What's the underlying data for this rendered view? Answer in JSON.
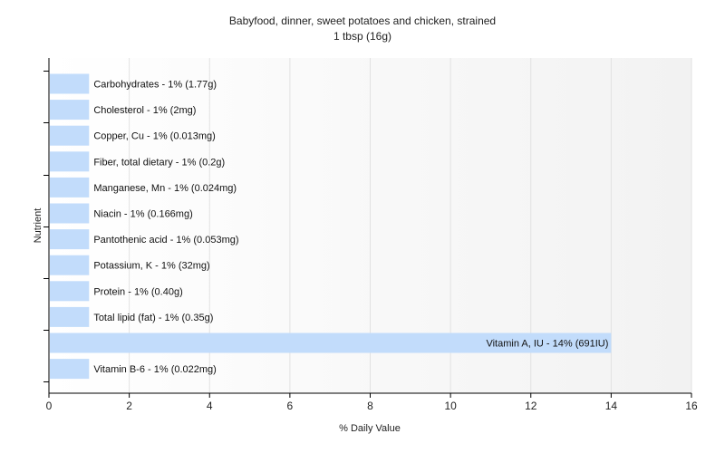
{
  "chart_data": {
    "type": "bar",
    "orientation": "horizontal",
    "title": "Babyfood, dinner, sweet potatoes and chicken, strained",
    "subtitle": "1 tbsp (16g)",
    "xlabel": "% Daily Value",
    "ylabel": "Nutrient",
    "xlim": [
      0,
      16
    ],
    "xticks": [
      0,
      2,
      4,
      6,
      8,
      10,
      12,
      14,
      16
    ],
    "grid": true,
    "categories": [
      "Carbohydrates",
      "Cholesterol",
      "Copper, Cu",
      "Fiber, total dietary",
      "Manganese, Mn",
      "Niacin",
      "Pantothenic acid",
      "Potassium, K",
      "Protein",
      "Total lipid (fat)",
      "Vitamin A, IU",
      "Vitamin B-6"
    ],
    "values": [
      1,
      1,
      1,
      1,
      1,
      1,
      1,
      1,
      1,
      1,
      14,
      1
    ],
    "labels": [
      "Carbohydrates - 1% (1.77g)",
      "Cholesterol - 1% (2mg)",
      "Copper, Cu - 1% (0.013mg)",
      "Fiber, total dietary - 1% (0.2g)",
      "Manganese, Mn - 1% (0.024mg)",
      "Niacin - 1% (0.166mg)",
      "Pantothenic acid - 1% (0.053mg)",
      "Potassium, K - 1% (32mg)",
      "Protein - 1% (0.40g)",
      "Total lipid (fat) - 1% (0.35g)",
      "Vitamin A, IU - 14% (691IU)",
      "Vitamin B-6 - 1% (0.022mg)"
    ],
    "colors": {
      "bar": "#c2dcfb",
      "grid": "#e2e2e2",
      "axis": "#000000",
      "plot_bg_start": "#ffffff",
      "plot_bg_end": "#f2f2f2"
    }
  }
}
